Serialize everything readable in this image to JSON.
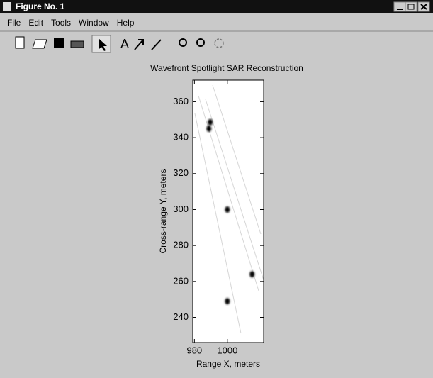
{
  "window": {
    "title": "Figure No. 1",
    "menu": [
      "File",
      "Edit",
      "Tools",
      "Window",
      "Help"
    ]
  },
  "chart_data": {
    "type": "scatter",
    "title": "Wavefront Spotlight SAR Reconstruction",
    "xlabel": "Range X, meters",
    "ylabel": "Cross-range Y, meters",
    "x": [
      989.6,
      988.8,
      1000,
      1015,
      1000
    ],
    "y": [
      348.6,
      345,
      300,
      264,
      249
    ],
    "color": "#000000",
    "xlim": [
      979,
      1022
    ],
    "xticks": [
      980,
      1000
    ],
    "ylim": [
      226,
      372
    ],
    "yticks": [
      240,
      260,
      280,
      300,
      320,
      340,
      360
    ]
  }
}
